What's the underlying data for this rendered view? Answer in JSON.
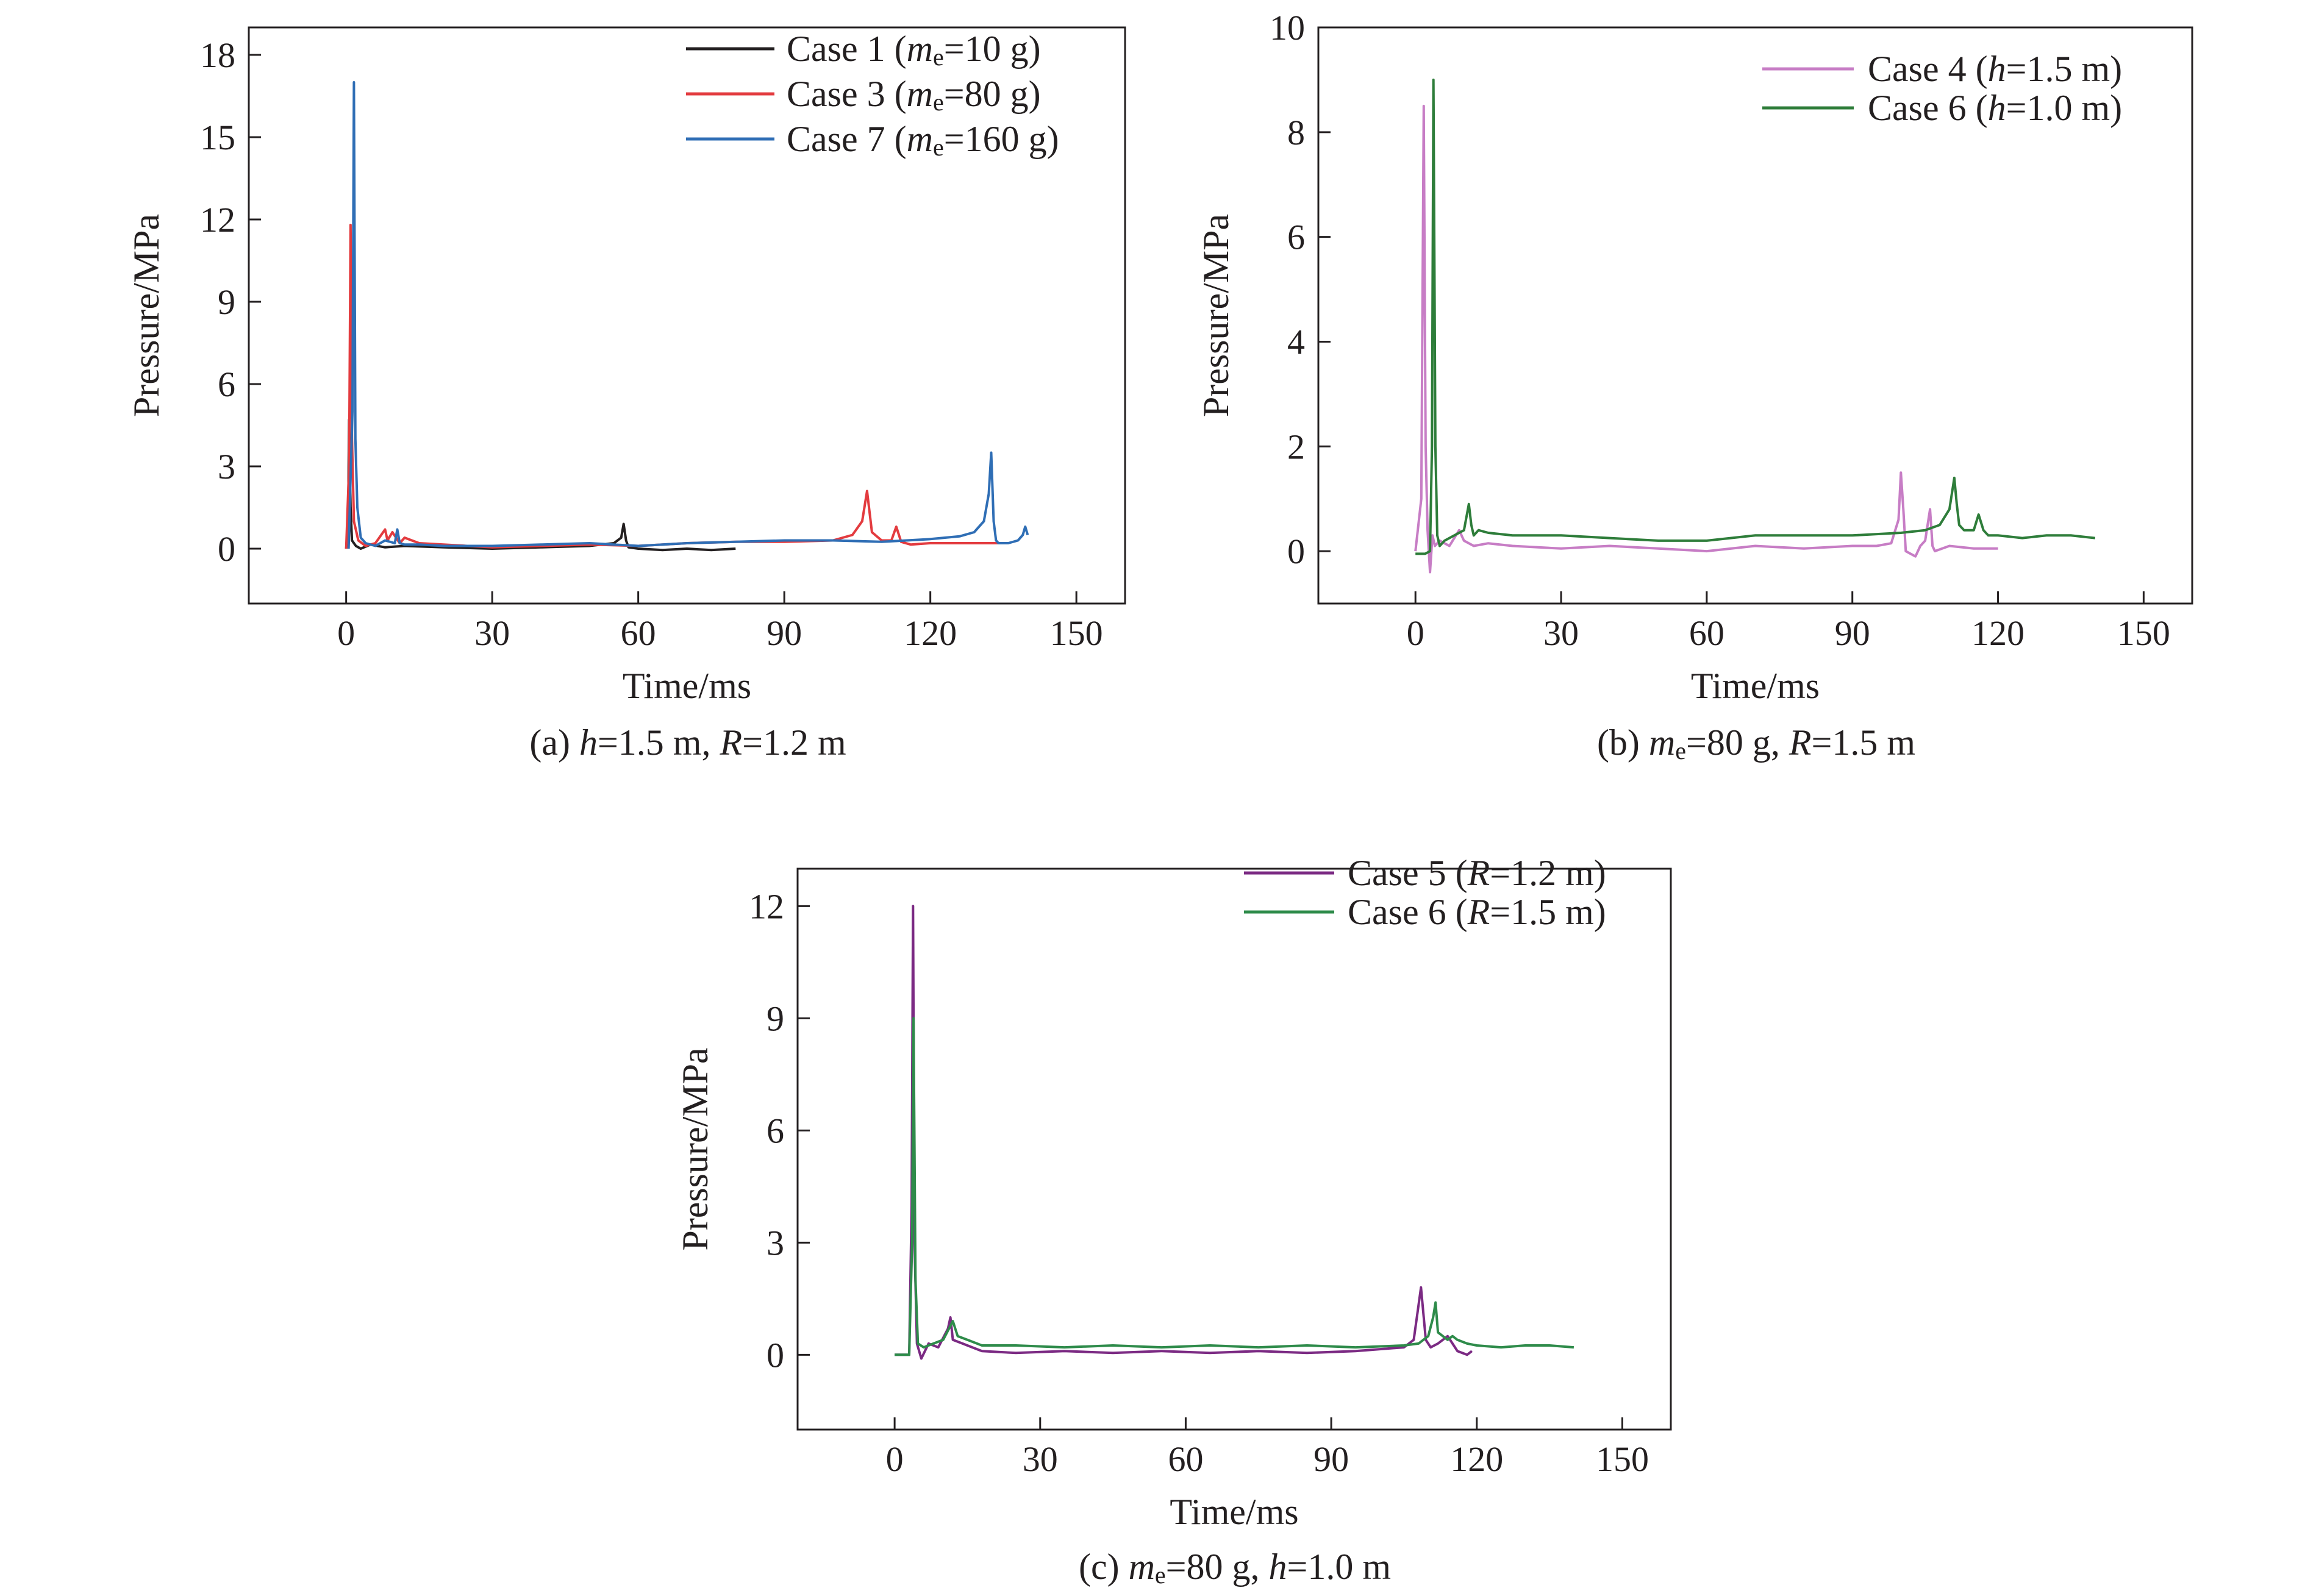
{
  "chart_data": [
    {
      "type": "line",
      "caption": "(a) h=1.5 m, R=1.2 m",
      "caption_parts": [
        {
          "t": "(a) ",
          "i": false
        },
        {
          "t": "h",
          "i": true
        },
        {
          "t": "=1.5 m, ",
          "i": false
        },
        {
          "t": "R",
          "i": true
        },
        {
          "t": "=1.2 m",
          "i": false
        }
      ],
      "xlabel": "Time/ms",
      "ylabel": "Pressure/MPa",
      "xlim": [
        -20,
        160
      ],
      "ylim": [
        -2,
        19
      ],
      "xticks": [
        0,
        30,
        60,
        90,
        120,
        150
      ],
      "yticks": [
        0,
        3,
        6,
        9,
        12,
        15,
        18
      ],
      "legend_position": "top-right",
      "series": [
        {
          "name": "Case 1 (me=10 g)",
          "name_parts": [
            {
              "t": "Case 1 (",
              "i": false
            },
            {
              "t": "m",
              "i": true
            },
            {
              "t": "e",
              "sub": true
            },
            {
              "t": "=10 g)",
              "i": false
            }
          ],
          "color": "#231f20",
          "x": [
            0,
            0.4,
            0.6,
            0.9,
            1.2,
            2,
            3,
            5,
            8,
            12,
            20,
            30,
            40,
            50,
            55,
            56.5,
            57,
            57.5,
            58,
            60,
            65,
            70,
            75,
            80
          ],
          "y": [
            0,
            1.0,
            4.7,
            1.5,
            0.3,
            0.1,
            0,
            0.15,
            0.05,
            0.1,
            0.05,
            0.0,
            0.05,
            0.1,
            0.2,
            0.4,
            0.9,
            0.3,
            0.05,
            0.0,
            -0.05,
            0.0,
            -0.05,
            0.0
          ]
        },
        {
          "name": "Case 3 (me=80 g)",
          "name_parts": [
            {
              "t": "Case 3 (",
              "i": false
            },
            {
              "t": "m",
              "i": true
            },
            {
              "t": "e",
              "sub": true
            },
            {
              "t": "=80 g)",
              "i": false
            }
          ],
          "color": "#e33b3f",
          "x": [
            0,
            0.6,
            0.9,
            1.2,
            1.6,
            2.5,
            4,
            6,
            8,
            8.5,
            9.5,
            11,
            12,
            15,
            20,
            30,
            40,
            50,
            60,
            70,
            80,
            90,
            100,
            104,
            106,
            107,
            108,
            110,
            112,
            113,
            114,
            116,
            120,
            125,
            130,
            135
          ],
          "y": [
            0,
            3.0,
            11.8,
            4.0,
            1.0,
            0.3,
            0.1,
            0.2,
            0.7,
            0.3,
            0.6,
            0.2,
            0.4,
            0.2,
            0.15,
            0.05,
            0.1,
            0.15,
            0.1,
            0.2,
            0.25,
            0.25,
            0.3,
            0.5,
            1.0,
            2.1,
            0.6,
            0.3,
            0.3,
            0.8,
            0.25,
            0.15,
            0.2,
            0.2,
            0.2,
            0.2
          ]
        },
        {
          "name": "Case 7 (me=160 g)",
          "name_parts": [
            {
              "t": "Case 7 (",
              "i": false
            },
            {
              "t": "m",
              "i": true
            },
            {
              "t": "e",
              "sub": true
            },
            {
              "t": "=160 g)",
              "i": false
            }
          ],
          "color": "#2f6eb5",
          "x": [
            0.5,
            1.3,
            1.6,
            1.9,
            2.3,
            3,
            4,
            6,
            8,
            10,
            10.5,
            11,
            12,
            15,
            20,
            30,
            40,
            50,
            60,
            70,
            80,
            90,
            100,
            110,
            120,
            126,
            129,
            131,
            132,
            132.5,
            133,
            133.5,
            134,
            136,
            138,
            139,
            139.5,
            140
          ],
          "y": [
            0,
            5.0,
            17.0,
            4.0,
            1.5,
            0.4,
            0.2,
            0.1,
            0.3,
            0.2,
            0.7,
            0.2,
            0.15,
            0.15,
            0.1,
            0.1,
            0.15,
            0.2,
            0.1,
            0.2,
            0.25,
            0.3,
            0.3,
            0.25,
            0.35,
            0.45,
            0.6,
            1.0,
            2.0,
            3.5,
            1.0,
            0.3,
            0.2,
            0.2,
            0.3,
            0.5,
            0.8,
            0.5
          ]
        }
      ]
    },
    {
      "type": "line",
      "caption": "(b) me=80 g, R=1.5 m",
      "caption_parts": [
        {
          "t": "(b) ",
          "i": false
        },
        {
          "t": "m",
          "i": true
        },
        {
          "t": "e",
          "sub": true
        },
        {
          "t": "=80 g, ",
          "i": false
        },
        {
          "t": "R",
          "i": true
        },
        {
          "t": "=1.5 m",
          "i": false
        }
      ],
      "xlabel": "Time/ms",
      "ylabel": "Pressure/MPa",
      "xlim": [
        -20,
        160
      ],
      "ylim": [
        -1,
        10
      ],
      "xticks": [
        0,
        30,
        60,
        90,
        120,
        150
      ],
      "yticks": [
        0,
        2,
        4,
        6,
        8,
        10
      ],
      "legend_position": "top-right",
      "series": [
        {
          "name": "Case 4 (h=1.5 m)",
          "name_parts": [
            {
              "t": "Case 4 (",
              "i": false
            },
            {
              "t": "h",
              "i": true
            },
            {
              "t": "=1.5 m)",
              "i": false
            }
          ],
          "color": "#c77dc5",
          "x": [
            0,
            1.2,
            1.7,
            2.1,
            2.5,
            3,
            3.5,
            4,
            5,
            7,
            9,
            10,
            12,
            15,
            20,
            30,
            40,
            50,
            60,
            70,
            80,
            90,
            95,
            98,
            99.5,
            100,
            100.5,
            101,
            103,
            104,
            105,
            106,
            106.5,
            107,
            110,
            115,
            120
          ],
          "y": [
            0,
            1.0,
            8.5,
            2.0,
            0.4,
            -0.4,
            0.3,
            0.1,
            0.2,
            0.1,
            0.4,
            0.2,
            0.1,
            0.15,
            0.1,
            0.05,
            0.1,
            0.05,
            0.0,
            0.1,
            0.05,
            0.1,
            0.1,
            0.15,
            0.6,
            1.5,
            0.8,
            0.0,
            -0.1,
            0.1,
            0.2,
            0.8,
            0.1,
            0.0,
            0.1,
            0.05,
            0.05
          ]
        },
        {
          "name": "Case 6 (h=1.0 m)",
          "name_parts": [
            {
              "t": "Case 6 (",
              "i": false
            },
            {
              "t": "h",
              "i": true
            },
            {
              "t": "=1.0 m)",
              "i": false
            }
          ],
          "color": "#2e7d3a",
          "x": [
            0,
            2,
            3,
            3.4,
            3.7,
            4.1,
            4.5,
            5,
            6,
            8,
            10,
            11,
            11.5,
            12,
            13,
            15,
            20,
            30,
            40,
            50,
            60,
            70,
            80,
            90,
            100,
            105,
            108,
            110,
            111,
            111.5,
            112,
            113,
            115,
            116,
            117,
            118,
            120,
            125,
            130,
            135,
            140
          ],
          "y": [
            -0.05,
            -0.05,
            0.0,
            2.0,
            9.0,
            2.0,
            0.3,
            0.1,
            0.2,
            0.3,
            0.4,
            0.9,
            0.5,
            0.3,
            0.4,
            0.35,
            0.3,
            0.3,
            0.25,
            0.2,
            0.2,
            0.3,
            0.3,
            0.3,
            0.35,
            0.4,
            0.5,
            0.8,
            1.4,
            0.9,
            0.5,
            0.4,
            0.4,
            0.7,
            0.4,
            0.3,
            0.3,
            0.25,
            0.3,
            0.3,
            0.25
          ]
        }
      ]
    },
    {
      "type": "line",
      "caption": "(c) me=80 g, h=1.0 m",
      "caption_parts": [
        {
          "t": "(c) ",
          "i": false
        },
        {
          "t": "m",
          "i": true
        },
        {
          "t": "e",
          "sub": true
        },
        {
          "t": "=80 g, ",
          "i": false
        },
        {
          "t": "h",
          "i": true
        },
        {
          "t": "=1.0 m",
          "i": false
        }
      ],
      "xlabel": "Time/ms",
      "ylabel": "Pressure/MPa",
      "xlim": [
        -20,
        160
      ],
      "ylim": [
        -2,
        13
      ],
      "xticks": [
        0,
        30,
        60,
        90,
        120,
        150
      ],
      "yticks": [
        0,
        3,
        6,
        9,
        12
      ],
      "legend_position": "top-right",
      "series": [
        {
          "name": "Case 5 (R=1.2 m)",
          "name_parts": [
            {
              "t": "Case 5 (",
              "i": false
            },
            {
              "t": "R",
              "i": true
            },
            {
              "t": "=1.2 m)",
              "i": false
            }
          ],
          "color": "#7b2a83",
          "x": [
            0,
            3,
            3.5,
            3.8,
            4.1,
            4.6,
            5.5,
            7,
            9,
            11,
            11.5,
            12,
            14,
            16,
            18,
            25,
            35,
            45,
            55,
            65,
            75,
            85,
            95,
            105,
            107,
            108.5,
            109.5,
            110.5,
            112,
            114,
            115,
            116,
            118,
            119
          ],
          "y": [
            0,
            0.0,
            4.0,
            12.0,
            3.0,
            0.3,
            -0.1,
            0.3,
            0.2,
            0.7,
            1.0,
            0.4,
            0.3,
            0.2,
            0.1,
            0.05,
            0.1,
            0.05,
            0.1,
            0.05,
            0.1,
            0.05,
            0.1,
            0.2,
            0.4,
            1.8,
            0.4,
            0.2,
            0.3,
            0.5,
            0.3,
            0.1,
            0.0,
            0.1
          ]
        },
        {
          "name": "Case 6 (R=1.5 m)",
          "name_parts": [
            {
              "t": "Case 6 (",
              "i": false
            },
            {
              "t": "R",
              "i": true
            },
            {
              "t": "=1.5 m)",
              "i": false
            }
          ],
          "color": "#2e8b4a",
          "x": [
            0,
            3,
            3.6,
            3.9,
            4.3,
            4.8,
            6,
            8,
            10,
            12,
            13,
            15,
            18,
            25,
            35,
            45,
            55,
            65,
            75,
            85,
            95,
            105,
            108,
            110,
            111,
            111.5,
            112,
            114,
            115,
            116,
            118,
            120,
            125,
            130,
            135,
            140
          ],
          "y": [
            0,
            0.0,
            3.0,
            9.0,
            2.0,
            0.3,
            0.2,
            0.3,
            0.4,
            0.9,
            0.5,
            0.4,
            0.25,
            0.25,
            0.2,
            0.25,
            0.2,
            0.25,
            0.2,
            0.25,
            0.2,
            0.25,
            0.3,
            0.5,
            1.0,
            1.4,
            0.6,
            0.4,
            0.5,
            0.4,
            0.3,
            0.25,
            0.2,
            0.25,
            0.25,
            0.2
          ]
        }
      ]
    }
  ]
}
